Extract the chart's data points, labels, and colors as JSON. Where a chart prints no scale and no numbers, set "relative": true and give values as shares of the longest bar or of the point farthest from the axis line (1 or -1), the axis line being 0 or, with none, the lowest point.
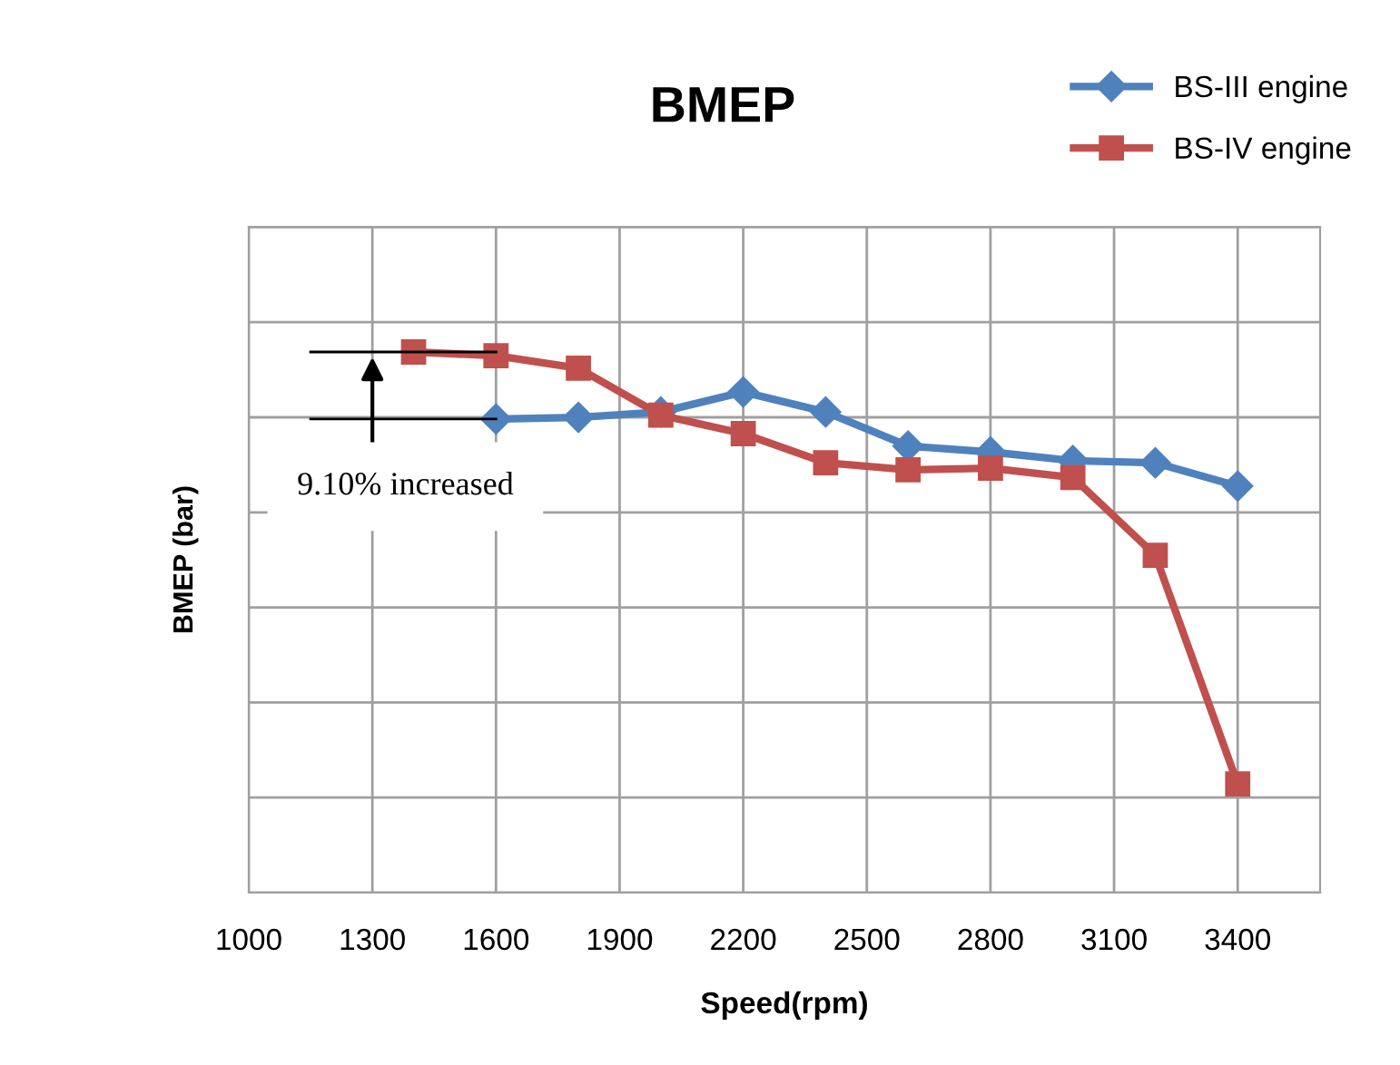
{
  "chart_data": {
    "type": "line",
    "title": "BMEP",
    "xlabel": "Speed(rpm)",
    "ylabel": "BMEP (bar)",
    "relative": true,
    "xlim": [
      1000,
      3600
    ],
    "xticks": [
      1000,
      1300,
      1600,
      1900,
      2200,
      2500,
      2800,
      3100,
      3400
    ],
    "grid": true,
    "legend": "top right",
    "line_style": "solid",
    "series": [
      {
        "name": "BS-III engine",
        "color": "#4f81bd",
        "marker": "diamond",
        "x": [
          1600,
          1800,
          2000,
          2200,
          2400,
          2600,
          2800,
          3000,
          3200,
          3400
        ],
        "values": [
          0.876,
          0.879,
          0.889,
          0.926,
          0.889,
          0.826,
          0.815,
          0.799,
          0.795,
          0.752
        ]
      },
      {
        "name": "BS-IV engine",
        "color": "#c0504d",
        "marker": "square",
        "x": [
          1400,
          1600,
          1800,
          2000,
          2200,
          2400,
          2600,
          2800,
          3000,
          3200,
          3400
        ],
        "values": [
          1.0,
          0.993,
          0.97,
          0.883,
          0.849,
          0.795,
          0.782,
          0.785,
          0.768,
          0.624,
          0.201
        ]
      }
    ],
    "annotations": [
      "9.10% increased"
    ]
  }
}
